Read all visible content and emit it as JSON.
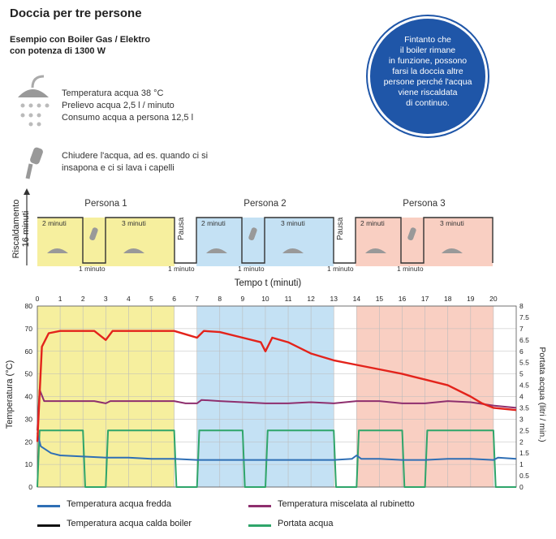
{
  "title": "Doccia per tre persone",
  "subtitle_line1": "Esempio con Boiler Gas / Elektro",
  "subtitle_line2": "con potenza di 1300 W",
  "shower_info": [
    "Temperatura acqua 38 °C",
    "Prelievo acqua 2,5 l / minuto",
    "Consumo acqua a persona 12,5 l"
  ],
  "tap_info": [
    "Chiudere l'acqua, ad es. quando ci si",
    "insapona e ci si lava i capelli"
  ],
  "bubble_lines": [
    "Fintanto che",
    "il boiler rimane",
    "in funzione, possono",
    "farsi la doccia altre",
    "persone perché l'acqua",
    "viene riscaldata",
    "di continuo."
  ],
  "heating_label": [
    "Riscaldamento",
    "16 minuti"
  ],
  "persons": [
    "Persona 1",
    "Persona 2",
    "Persona 3"
  ],
  "pause_label": "Pausa",
  "label_2min": "2 minuti",
  "label_3min": "3 minuti",
  "label_1min": "1 minuto",
  "time_axis_label": "Tempo t (minuti)",
  "colors": {
    "person1": "#f6ef9e",
    "person2": "#c4e1f4",
    "person3": "#f9cfc2",
    "fredda": "#2f6fb5",
    "boiler": "#e3231b",
    "miscelata": "#8e2f6e",
    "portata": "#2fa56a",
    "bubble": "#1f56a8"
  },
  "legend": [
    "Temperatura acqua fredda",
    "Temperatura miscelata al rubinetto",
    "Temperatura acqua calda boiler",
    "Portata acqua"
  ],
  "chart_data": {
    "type": "line",
    "x": [
      0,
      0.3,
      1,
      2,
      3,
      4,
      5,
      6,
      7,
      8,
      9,
      10,
      11,
      12,
      13,
      14,
      15,
      16,
      17,
      18,
      19,
      20,
      21
    ],
    "xlim": [
      0,
      21
    ],
    "x_ticks": [
      0,
      1,
      2,
      3,
      4,
      5,
      6,
      7,
      8,
      9,
      10,
      11,
      12,
      13,
      14,
      15,
      16,
      17,
      18,
      19,
      20
    ],
    "ylim_left": [
      0,
      80
    ],
    "y_ticks_left": [
      0,
      10,
      20,
      30,
      40,
      50,
      60,
      70,
      80
    ],
    "ylabel_left": "Temperatura (°C)",
    "ylim_right": [
      0,
      8
    ],
    "y_ticks_right": [
      "0",
      "0.5",
      "1",
      "1.5",
      "2",
      "2.5",
      "3",
      "3.5",
      "4",
      "4.5",
      "5",
      "5.5",
      "6",
      "6.5",
      "7",
      "7.5",
      "8"
    ],
    "ylabel_right": "Portata acqua (litri / min.)",
    "shaded_regions": [
      {
        "from": 0,
        "to": 6,
        "color": "#f6ef9e"
      },
      {
        "from": 7,
        "to": 13,
        "color": "#c4e1f4"
      },
      {
        "from": 14,
        "to": 20,
        "color": "#f9cfc2"
      }
    ],
    "series": [
      {
        "name": "Temperatura acqua calda boiler",
        "color": "#e3231b",
        "axis": "left",
        "points": [
          [
            0,
            20
          ],
          [
            0.2,
            62
          ],
          [
            0.5,
            68
          ],
          [
            1,
            69
          ],
          [
            2,
            69
          ],
          [
            2.5,
            69
          ],
          [
            3,
            65
          ],
          [
            3.3,
            69
          ],
          [
            4,
            69
          ],
          [
            5,
            69
          ],
          [
            6,
            69
          ],
          [
            6.5,
            67.5
          ],
          [
            7,
            66
          ],
          [
            7.3,
            69
          ],
          [
            8,
            68.5
          ],
          [
            9,
            66
          ],
          [
            9.8,
            64
          ],
          [
            10,
            60
          ],
          [
            10.3,
            66
          ],
          [
            11,
            64
          ],
          [
            12,
            59
          ],
          [
            13,
            56
          ],
          [
            14,
            54
          ],
          [
            15,
            52
          ],
          [
            16,
            50
          ],
          [
            17,
            47.5
          ],
          [
            18,
            45
          ],
          [
            19,
            40
          ],
          [
            19.5,
            37
          ],
          [
            20,
            35
          ],
          [
            21,
            34
          ]
        ]
      },
      {
        "name": "Temperatura miscelata al rubinetto",
        "color": "#8e2f6e",
        "axis": "left",
        "points": [
          [
            0,
            25
          ],
          [
            0.1,
            43
          ],
          [
            0.3,
            38
          ],
          [
            1,
            38
          ],
          [
            2,
            38
          ],
          [
            2.5,
            38
          ],
          [
            3,
            37
          ],
          [
            3.2,
            38
          ],
          [
            4,
            38
          ],
          [
            5,
            38
          ],
          [
            6,
            38
          ],
          [
            6.5,
            37
          ],
          [
            7,
            37
          ],
          [
            7.2,
            38.5
          ],
          [
            8,
            38
          ],
          [
            9,
            37.5
          ],
          [
            10,
            37
          ],
          [
            11,
            37
          ],
          [
            12,
            37.5
          ],
          [
            13,
            37
          ],
          [
            14,
            38
          ],
          [
            15,
            38
          ],
          [
            16,
            37
          ],
          [
            17,
            37
          ],
          [
            18,
            38
          ],
          [
            19,
            37.5
          ],
          [
            20,
            36
          ],
          [
            21,
            35
          ]
        ]
      },
      {
        "name": "Temperatura acqua fredda",
        "color": "#2f6fb5",
        "axis": "left",
        "points": [
          [
            0,
            24
          ],
          [
            0.15,
            18
          ],
          [
            0.6,
            15
          ],
          [
            1,
            14
          ],
          [
            2,
            13.5
          ],
          [
            3,
            13
          ],
          [
            4,
            13
          ],
          [
            5,
            12.5
          ],
          [
            6,
            12.5
          ],
          [
            7,
            12
          ],
          [
            8,
            12
          ],
          [
            9,
            12
          ],
          [
            10,
            12
          ],
          [
            11,
            12
          ],
          [
            12,
            12
          ],
          [
            13,
            12
          ],
          [
            13.8,
            12.5
          ],
          [
            14,
            14
          ],
          [
            14.2,
            12.5
          ],
          [
            15,
            12.5
          ],
          [
            16,
            12
          ],
          [
            17,
            12
          ],
          [
            18,
            12.5
          ],
          [
            19,
            12.5
          ],
          [
            20,
            12
          ],
          [
            20.2,
            13
          ],
          [
            21,
            12.5
          ]
        ]
      },
      {
        "name": "Portata acqua",
        "color": "#2fa56a",
        "axis": "right",
        "points": [
          [
            0,
            0
          ],
          [
            0.1,
            2.5
          ],
          [
            2,
            2.5
          ],
          [
            2.1,
            0
          ],
          [
            3,
            0
          ],
          [
            3.1,
            2.5
          ],
          [
            6,
            2.5
          ],
          [
            6.1,
            0
          ],
          [
            7,
            0
          ],
          [
            7.1,
            2.5
          ],
          [
            9,
            2.5
          ],
          [
            9.1,
            0
          ],
          [
            10,
            0
          ],
          [
            10.1,
            2.5
          ],
          [
            13,
            2.5
          ],
          [
            13.1,
            0
          ],
          [
            14,
            0
          ],
          [
            14.1,
            2.5
          ],
          [
            16,
            2.5
          ],
          [
            16.1,
            0
          ],
          [
            17,
            0
          ],
          [
            17.1,
            2.5
          ],
          [
            20,
            2.5
          ],
          [
            20.1,
            0
          ],
          [
            21,
            0
          ]
        ]
      }
    ]
  }
}
